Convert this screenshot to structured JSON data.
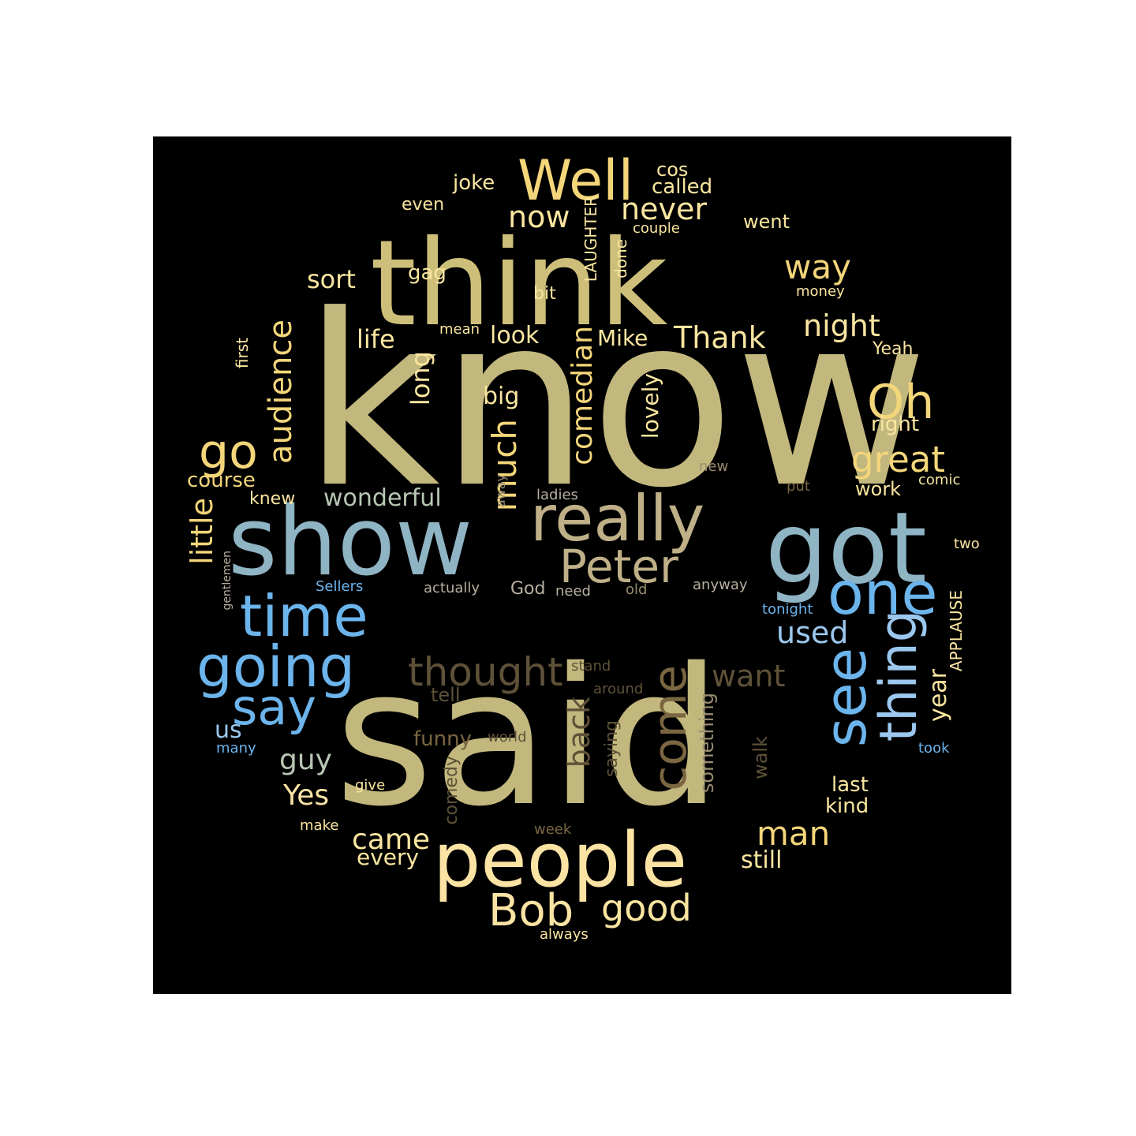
{
  "colors": {
    "background": "#000000",
    "page": "#ffffff",
    "khaki": "#c2b77d",
    "khaki_light": "#cdbf7a",
    "tan": "#bfb088",
    "gold": "#f4d67a",
    "cream": "#fae6a0",
    "light_yellow": "#fbe3a3",
    "steel_blue": "#8fb4c4",
    "sky_blue": "#6cb4ec",
    "light_blue": "#9cc7ee",
    "sage": "#b7c7b3",
    "brown": "#7a6641",
    "dark_brown": "#5e5138",
    "taupe": "#9a8d72",
    "grey_beige": "#b8b0a0",
    "grey": "#999999"
  },
  "words": [
    {
      "text": "know",
      "color": "khaki"
    },
    {
      "text": "said",
      "color": "khaki"
    },
    {
      "text": "think",
      "color": "khaki_light"
    },
    {
      "text": "show",
      "color": "steel_blue"
    },
    {
      "text": "got",
      "color": "steel_blue"
    },
    {
      "text": "really",
      "color": "tan"
    },
    {
      "text": "people",
      "color": "light_yellow"
    },
    {
      "text": "Well",
      "color": "gold"
    },
    {
      "text": "one",
      "color": "sky_blue"
    },
    {
      "text": "time",
      "color": "sky_blue"
    },
    {
      "text": "Peter",
      "color": "tan"
    },
    {
      "text": "going",
      "color": "sky_blue"
    },
    {
      "text": "say",
      "color": "sky_blue"
    },
    {
      "text": "see",
      "color": "sky_blue"
    },
    {
      "text": "thing",
      "color": "light_blue"
    },
    {
      "text": "come",
      "color": "brown"
    },
    {
      "text": "Oh",
      "color": "gold"
    },
    {
      "text": "go",
      "color": "gold"
    },
    {
      "text": "thought",
      "color": "dark_brown"
    },
    {
      "text": "Bob",
      "color": "light_yellow"
    },
    {
      "text": "good",
      "color": "cream"
    },
    {
      "text": "great",
      "color": "gold"
    },
    {
      "text": "now",
      "color": "cream"
    },
    {
      "text": "never",
      "color": "cream"
    },
    {
      "text": "way",
      "color": "gold"
    },
    {
      "text": "audience",
      "color": "gold"
    },
    {
      "text": "much",
      "color": "gold"
    },
    {
      "text": "comedian",
      "color": "gold"
    },
    {
      "text": "man",
      "color": "gold"
    },
    {
      "text": "night",
      "color": "cream"
    },
    {
      "text": "Thank",
      "color": "cream"
    },
    {
      "text": "used",
      "color": "light_blue"
    },
    {
      "text": "want",
      "color": "dark_brown"
    },
    {
      "text": "back",
      "color": "dark_brown"
    },
    {
      "text": "little",
      "color": "gold"
    },
    {
      "text": "guy",
      "color": "sage"
    },
    {
      "text": "Yes",
      "color": "light_yellow"
    },
    {
      "text": "came",
      "color": "cream"
    },
    {
      "text": "wonderful",
      "color": "sage"
    },
    {
      "text": "life",
      "color": "cream"
    },
    {
      "text": "sort",
      "color": "cream"
    },
    {
      "text": "long",
      "color": "cream"
    },
    {
      "text": "look",
      "color": "cream"
    },
    {
      "text": "Mike",
      "color": "cream"
    },
    {
      "text": "big",
      "color": "cream"
    },
    {
      "text": "lovely",
      "color": "cream"
    },
    {
      "text": "year",
      "color": "cream"
    },
    {
      "text": "still",
      "color": "cream"
    },
    {
      "text": "every",
      "color": "cream"
    },
    {
      "text": "funny",
      "color": "brown"
    },
    {
      "text": "tell",
      "color": "dark_brown"
    },
    {
      "text": "something",
      "color": "taupe"
    },
    {
      "text": "walk",
      "color": "dark_brown"
    },
    {
      "text": "saying",
      "color": "dark_brown"
    },
    {
      "text": "comedy",
      "color": "dark_brown"
    },
    {
      "text": "last",
      "color": "cream"
    },
    {
      "text": "kind",
      "color": "cream"
    },
    {
      "text": "course",
      "color": "gold"
    },
    {
      "text": "knew",
      "color": "cream"
    },
    {
      "text": "work",
      "color": "cream"
    },
    {
      "text": "joke",
      "color": "cream"
    },
    {
      "text": "cos",
      "color": "cream"
    },
    {
      "text": "called",
      "color": "cream"
    },
    {
      "text": "went",
      "color": "cream"
    },
    {
      "text": "gag",
      "color": "cream"
    },
    {
      "text": "bit",
      "color": "cream"
    },
    {
      "text": "done",
      "color": "cream"
    },
    {
      "text": "LAUGHTER",
      "color": "cream"
    },
    {
      "text": "even",
      "color": "cream"
    },
    {
      "text": "couple",
      "color": "cream"
    },
    {
      "text": "money",
      "color": "cream"
    },
    {
      "text": "mean",
      "color": "cream"
    },
    {
      "text": "Yeah",
      "color": "cream"
    },
    {
      "text": "right",
      "color": "cream"
    },
    {
      "text": "first",
      "color": "cream"
    },
    {
      "text": "us",
      "color": "light_blue"
    },
    {
      "text": "God",
      "color": "grey_beige"
    },
    {
      "text": "APPLAUSE",
      "color": "cream"
    },
    {
      "text": "Sellers",
      "color": "sky_blue"
    },
    {
      "text": "actually",
      "color": "grey_beige"
    },
    {
      "text": "need",
      "color": "grey_beige"
    },
    {
      "text": "old",
      "color": "taupe"
    },
    {
      "text": "anyway",
      "color": "grey_beige"
    },
    {
      "text": "tonight",
      "color": "sky_blue"
    },
    {
      "text": "gentlemen",
      "color": "grey_beige"
    },
    {
      "text": "two",
      "color": "cream"
    },
    {
      "text": "comic",
      "color": "cream"
    },
    {
      "text": "put",
      "color": "brown"
    },
    {
      "text": "new",
      "color": "taupe"
    },
    {
      "text": "away",
      "color": "taupe"
    },
    {
      "text": "ladies",
      "color": "grey_beige"
    },
    {
      "text": "stand",
      "color": "dark_brown"
    },
    {
      "text": "around",
      "color": "dark_brown"
    },
    {
      "text": "world",
      "color": "dark_brown"
    },
    {
      "text": "took",
      "color": "sky_blue"
    },
    {
      "text": "many",
      "color": "sky_blue"
    },
    {
      "text": "give",
      "color": "cream"
    },
    {
      "text": "make",
      "color": "cream"
    },
    {
      "text": "week",
      "color": "brown"
    },
    {
      "text": "always",
      "color": "cream"
    }
  ]
}
